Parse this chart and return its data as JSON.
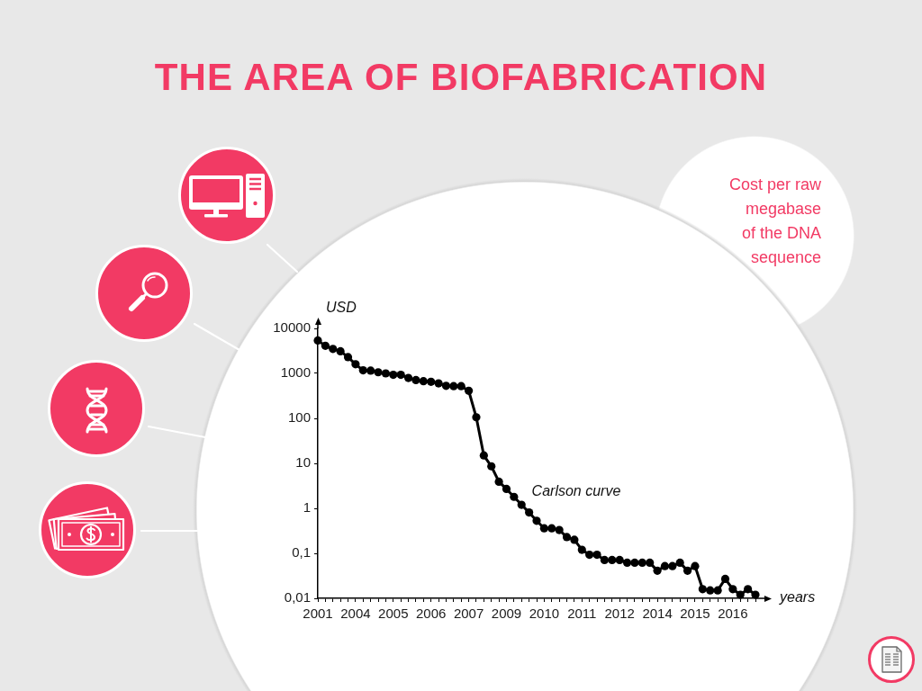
{
  "chart_data": {
    "type": "line",
    "title": "THE AREA OF BIOFABRICATION",
    "subtitle": "Cost per raw\nmegabase\nof the DNA\nsequence",
    "xlabel": "years",
    "ylabel": "USD",
    "categories": [
      "2001",
      null,
      null,
      null,
      null,
      "2004",
      null,
      null,
      null,
      null,
      "2005",
      null,
      null,
      null,
      null,
      "2006",
      null,
      null,
      null,
      null,
      "2007",
      null,
      null,
      null,
      null,
      "2009",
      null,
      null,
      null,
      null,
      "2010",
      null,
      null,
      null,
      null,
      "2011",
      null,
      null,
      null,
      null,
      "2012",
      null,
      null,
      null,
      null,
      "2014",
      null,
      null,
      null,
      null,
      "2015",
      null,
      null,
      null,
      null,
      "2016",
      null,
      null,
      null
    ],
    "series": [
      {
        "name": "Carlson curve",
        "color": "#000000",
        "values": [
          5400,
          4100,
          3500,
          3100,
          2300,
          1600,
          1170,
          1150,
          1060,
          1000,
          930,
          930,
          790,
          710,
          670,
          650,
          600,
          530,
          520,
          520,
          410,
          106,
          15,
          8.6,
          3.9,
          2.7,
          1.8,
          1.2,
          0.81,
          0.53,
          0.36,
          0.36,
          0.33,
          0.23,
          0.2,
          0.12,
          0.093,
          0.093,
          0.071,
          0.071,
          0.071,
          0.062,
          0.062,
          0.062,
          0.062,
          0.041,
          0.052,
          0.052,
          0.062,
          0.041,
          0.052,
          0.016,
          0.015,
          0.015,
          0.027,
          0.016,
          0.012,
          0.016,
          0.012
        ]
      }
    ],
    "ylim": [
      0.01,
      10000
    ],
    "yticks": [
      {
        "value": 0.01,
        "label": "0,01"
      },
      {
        "value": 0.1,
        "label": "0,1"
      },
      1,
      10,
      100,
      1000,
      10000
    ],
    "log": true,
    "grid": false,
    "legend": false,
    "marker": "circle",
    "line_style": "solid"
  }
}
